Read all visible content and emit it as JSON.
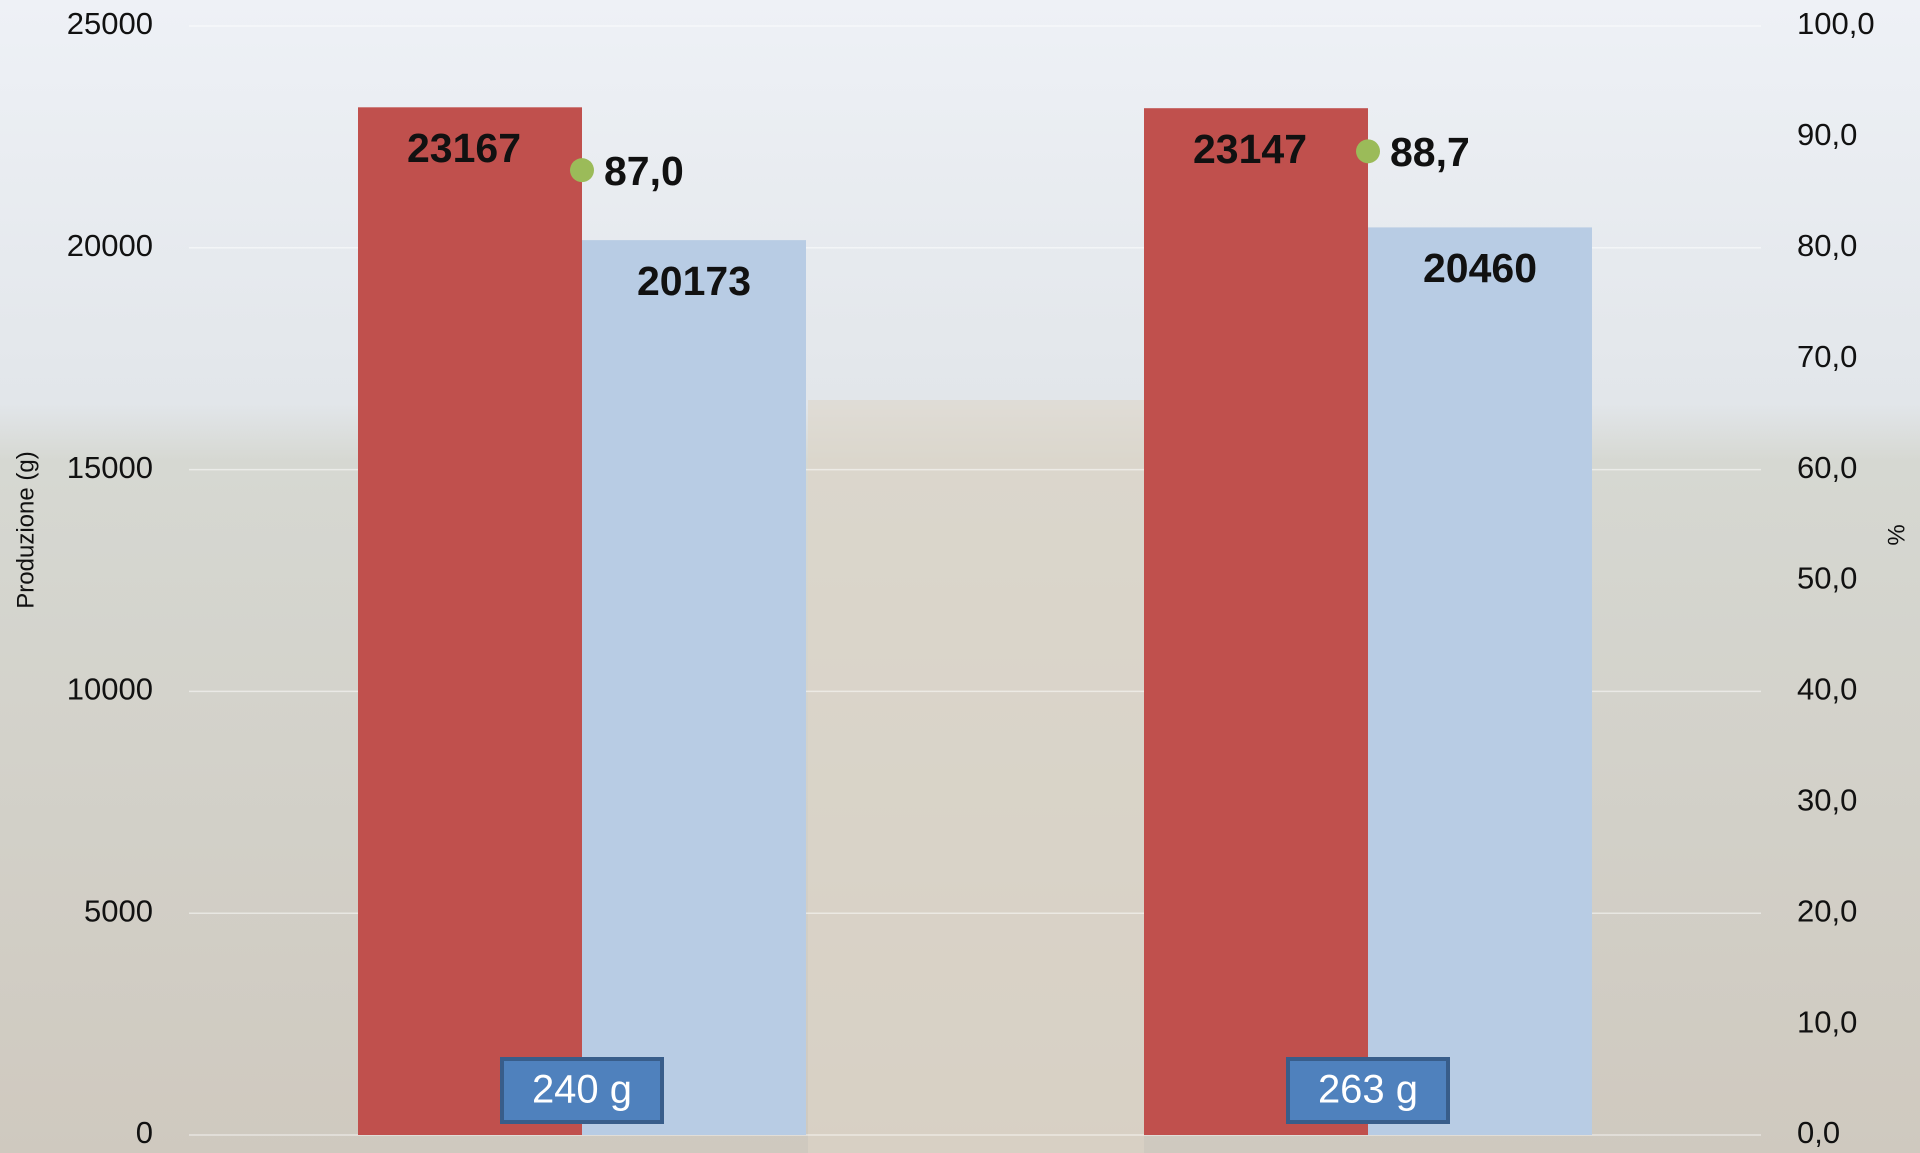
{
  "chart_data": {
    "type": "bar",
    "categories": [
      null,
      null
    ],
    "series": [
      {
        "color": "#c0504d",
        "values": [
          23167,
          23147
        ]
      },
      {
        "color": "#b8cce4",
        "values": [
          20173,
          20460
        ]
      },
      {
        "type": "scatter",
        "axis": "y2",
        "color": "#9bbb59",
        "values": [
          87.0,
          88.7
        ],
        "value_labels": [
          "87,0",
          "88,7"
        ]
      }
    ],
    "annotations": [
      "240 g",
      "263 g"
    ],
    "ylabel": "Produzione (g)",
    "y2label": "%",
    "ylim": [
      0,
      25000
    ],
    "yticks": [
      0,
      5000,
      10000,
      15000,
      20000,
      25000
    ],
    "y2lim": [
      0,
      100
    ],
    "y2ticks": [
      {
        "value": 0,
        "label": "0,0"
      },
      {
        "value": 10,
        "label": "10,0"
      },
      {
        "value": 20,
        "label": "20,0"
      },
      {
        "value": 30,
        "label": "30,0"
      },
      {
        "value": 40,
        "label": "40,0"
      },
      {
        "value": 50,
        "label": "50,0"
      },
      {
        "value": 60,
        "label": "60,0"
      },
      {
        "value": 70,
        "label": "70,0"
      },
      {
        "value": 80,
        "label": "80,0"
      },
      {
        "value": 90,
        "label": "90,0"
      },
      {
        "value": 100,
        "label": "100,0"
      }
    ],
    "grid": true
  }
}
